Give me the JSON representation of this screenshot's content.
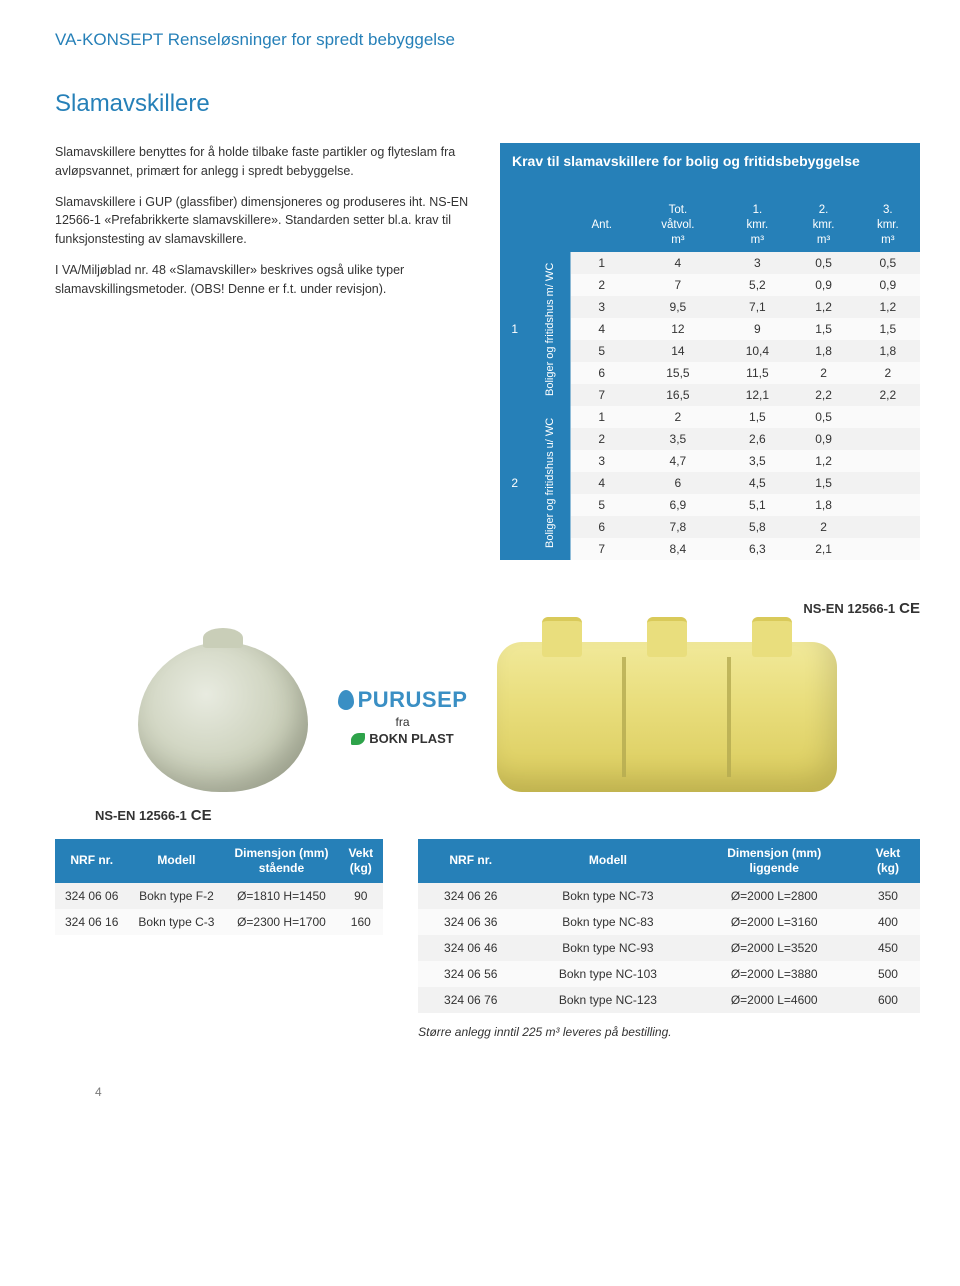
{
  "header": "VA-KONSEPT Renseløsninger for spredt bebyggelse",
  "section_title": "Slamavskillere",
  "paragraphs": {
    "p1": "Slamavskillere benyttes for å holde tilbake faste partikler og flyteslam fra avløpsvannet, primært for anlegg i spredt bebyggelse.",
    "p2": "Slamavskillere i GUP (glassfiber) dimensjoneres og produseres iht. NS-EN 12566-1 «Prefabrikkerte slamavskillere». Standarden setter bl.a. krav til funksjonstesting av slamavskillere.",
    "p3": "I VA/Miljøblad nr. 48 «Slamavskiller» beskrives også ulike typer slamavskillingsmetoder. (OBS! Denne er f.t. under revisjon)."
  },
  "req_title": "Krav til slamavskillere for bolig og fritidsbebyggelse",
  "req_cols": {
    "c0": "Ant.",
    "c1a": "Tot.",
    "c1b": "våtvol.",
    "c1c": "m³",
    "c2a": "1.",
    "c2b": "kmr.",
    "c2c": "m³",
    "c3a": "2.",
    "c3b": "kmr.",
    "c3c": "m³",
    "c4a": "3.",
    "c4b": "kmr.",
    "c4c": "m³"
  },
  "group_labels": {
    "g1_num": "1",
    "g1_txt": "Boliger og fritidshus m/ WC",
    "g2_num": "2",
    "g2_txt": "Boliger og fritidshus u/ WC"
  },
  "req_rows_g1": [
    {
      "a": "1",
      "b": "4",
      "c": "3",
      "d": "0,5",
      "e": "0,5"
    },
    {
      "a": "2",
      "b": "7",
      "c": "5,2",
      "d": "0,9",
      "e": "0,9"
    },
    {
      "a": "3",
      "b": "9,5",
      "c": "7,1",
      "d": "1,2",
      "e": "1,2"
    },
    {
      "a": "4",
      "b": "12",
      "c": "9",
      "d": "1,5",
      "e": "1,5"
    },
    {
      "a": "5",
      "b": "14",
      "c": "10,4",
      "d": "1,8",
      "e": "1,8"
    },
    {
      "a": "6",
      "b": "15,5",
      "c": "11,5",
      "d": "2",
      "e": "2"
    },
    {
      "a": "7",
      "b": "16,5",
      "c": "12,1",
      "d": "2,2",
      "e": "2,2"
    }
  ],
  "req_rows_g2": [
    {
      "a": "1",
      "b": "2",
      "c": "1,5",
      "d": "0,5",
      "e": ""
    },
    {
      "a": "2",
      "b": "3,5",
      "c": "2,6",
      "d": "0,9",
      "e": ""
    },
    {
      "a": "3",
      "b": "4,7",
      "c": "3,5",
      "d": "1,2",
      "e": ""
    },
    {
      "a": "4",
      "b": "6",
      "c": "4,5",
      "d": "1,5",
      "e": ""
    },
    {
      "a": "5",
      "b": "6,9",
      "c": "5,1",
      "d": "1,8",
      "e": ""
    },
    {
      "a": "6",
      "b": "7,8",
      "c": "5,8",
      "d": "2",
      "e": ""
    },
    {
      "a": "7",
      "b": "8,4",
      "c": "6,3",
      "d": "2,1",
      "e": ""
    }
  ],
  "cert": {
    "text": "NS-EN 12566-1",
    "ce": "CE"
  },
  "brand": {
    "purusep": "PURUSEP",
    "fra": "fra",
    "bokn": "BOKN PLAST"
  },
  "table1": {
    "h1": "NRF nr.",
    "h2": "Modell",
    "h3a": "Dimensjon (mm)",
    "h3b": "stående",
    "h4a": "Vekt",
    "h4b": "(kg)",
    "rows": [
      {
        "a": "324 06 06",
        "b": "Bokn type F-2",
        "c": "Ø=1810 H=1450",
        "d": "90"
      },
      {
        "a": "324 06 16",
        "b": "Bokn type C-3",
        "c": "Ø=2300 H=1700",
        "d": "160"
      }
    ]
  },
  "table2": {
    "h1": "NRF nr.",
    "h2": "Modell",
    "h3a": "Dimensjon (mm)",
    "h3b": "liggende",
    "h4a": "Vekt",
    "h4b": "(kg)",
    "rows": [
      {
        "a": "324 06 26",
        "b": "Bokn type NC-73",
        "c": "Ø=2000 L=2800",
        "d": "350"
      },
      {
        "a": "324 06 36",
        "b": "Bokn type NC-83",
        "c": "Ø=2000 L=3160",
        "d": "400"
      },
      {
        "a": "324 06 46",
        "b": "Bokn type NC-93",
        "c": "Ø=2000 L=3520",
        "d": "450"
      },
      {
        "a": "324 06 56",
        "b": "Bokn type NC-103",
        "c": "Ø=2000 L=3880",
        "d": "500"
      },
      {
        "a": "324 06 76",
        "b": "Bokn type NC-123",
        "c": "Ø=2000 L=4600",
        "d": "600"
      }
    ]
  },
  "footnote": "Større anlegg inntil 225 m³ leveres på bestilling.",
  "page_number": "4",
  "colors": {
    "accent": "#2680b8",
    "row_odd": "#f2f2f2",
    "row_even": "#fafafa",
    "tank_lying": "#e9de7d",
    "tank_standing": "#c9ceb8"
  }
}
